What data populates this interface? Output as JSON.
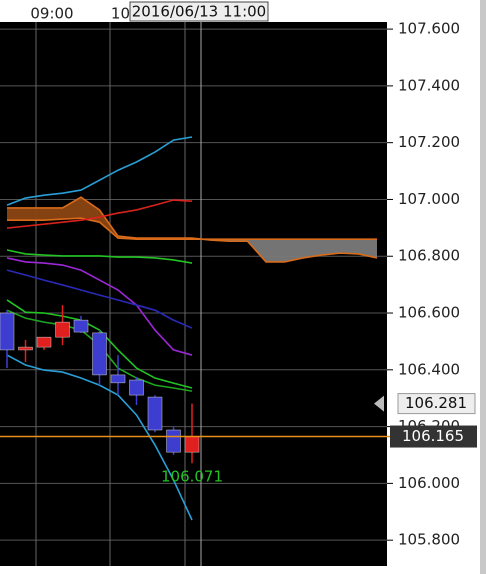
{
  "chart_data": {
    "type": "candlestick",
    "tooltip": "2016/06/13 11:00",
    "time_labels": [
      "09:00",
      "10:"
    ],
    "up_color": "#e0201e",
    "down_color": "#3d3dd0",
    "ylim": [
      105.709,
      107.625
    ],
    "yticks": [
      {
        "value": 107.6,
        "label": "107.600"
      },
      {
        "value": 107.4,
        "label": "107.400"
      },
      {
        "value": 107.2,
        "label": "107.200"
      },
      {
        "value": 107.0,
        "label": "107.000"
      },
      {
        "value": 106.8,
        "label": "106.800"
      },
      {
        "value": 106.6,
        "label": "106.600"
      },
      {
        "value": 106.4,
        "label": "106.400"
      },
      {
        "value": 106.2,
        "label": "106.200"
      },
      {
        "value": 106.0,
        "label": "106.000"
      },
      {
        "value": 105.8,
        "label": "105.800"
      }
    ],
    "grid": true,
    "open": [
      106.6,
      106.47,
      106.48,
      106.515,
      106.575,
      106.53,
      106.382,
      106.364,
      106.304,
      106.188,
      106.11
    ],
    "high": [
      106.61,
      106.505,
      106.5,
      106.628,
      106.59,
      106.54,
      106.452,
      106.375,
      106.31,
      106.2,
      106.281
    ],
    "low": [
      106.406,
      106.427,
      106.47,
      106.487,
      106.53,
      106.346,
      106.311,
      106.276,
      106.18,
      106.1,
      106.071
    ],
    "close": [
      106.47,
      106.48,
      106.515,
      106.568,
      106.533,
      106.382,
      106.354,
      106.311,
      106.188,
      106.11,
      106.165
    ],
    "series": [
      {
        "color": "#2a9fd6",
        "values": [
          106.98,
          107.005,
          107.015,
          107.022,
          107.033,
          107.068,
          107.103,
          107.132,
          107.167,
          107.209,
          107.22
        ]
      },
      {
        "color": "#d8231c",
        "values": [
          106.899,
          106.906,
          106.913,
          106.92,
          106.927,
          106.938,
          106.952,
          106.963,
          106.98,
          106.998,
          106.994
        ]
      },
      {
        "color": "#22c322",
        "values": [
          106.822,
          106.808,
          106.804,
          106.801,
          106.801,
          106.801,
          106.797,
          106.797,
          106.794,
          106.787,
          106.776
        ]
      },
      {
        "color": "#9b27d6",
        "values": [
          106.794,
          106.78,
          106.776,
          106.769,
          106.751,
          106.716,
          106.681,
          106.628,
          106.54,
          106.47,
          106.452
        ]
      },
      {
        "color": "#2a2ab8",
        "values": [
          106.751,
          106.734,
          106.716,
          106.699,
          106.681,
          106.663,
          106.646,
          106.628,
          106.61,
          106.575,
          106.547
        ]
      },
      {
        "color": "#22c322",
        "values": [
          106.646,
          106.603,
          106.6,
          106.589,
          106.575,
          106.54,
          106.47,
          106.406,
          106.371,
          106.353,
          106.336
        ]
      },
      {
        "color": "#1fa51f",
        "values": [
          106.61,
          106.582,
          106.568,
          106.558,
          106.54,
          106.487,
          106.406,
          106.371,
          106.346,
          106.336,
          106.325
        ]
      },
      {
        "color": "#2a9fd6",
        "values": [
          106.452,
          106.417,
          106.399,
          106.392,
          106.371,
          106.346,
          106.311,
          106.241,
          106.135,
          106.012,
          105.871
        ]
      }
    ],
    "cloud": {
      "span_a": [
        106.97,
        106.97,
        106.97,
        106.97,
        107.008,
        106.963,
        106.871,
        106.864,
        106.864,
        106.864,
        106.864,
        106.857,
        106.853,
        106.853,
        106.78,
        106.78,
        106.794,
        106.804,
        106.811,
        106.808,
        106.794
      ],
      "span_b": [
        106.927,
        106.927,
        106.927,
        106.931,
        106.934,
        106.92,
        106.864,
        106.86,
        106.86,
        106.86,
        106.86,
        106.86,
        106.86,
        106.86,
        106.86,
        106.86,
        106.86,
        106.86,
        106.86,
        106.86,
        106.86
      ],
      "line_color": "#d96b1a",
      "up_fill": "#8b4513",
      "down_fill": "#7a7a7a"
    },
    "price_markers": {
      "high": 106.281,
      "current": 106.165,
      "low": 106.071
    },
    "current_color": "#e8901a",
    "low_color": "#22c322"
  }
}
